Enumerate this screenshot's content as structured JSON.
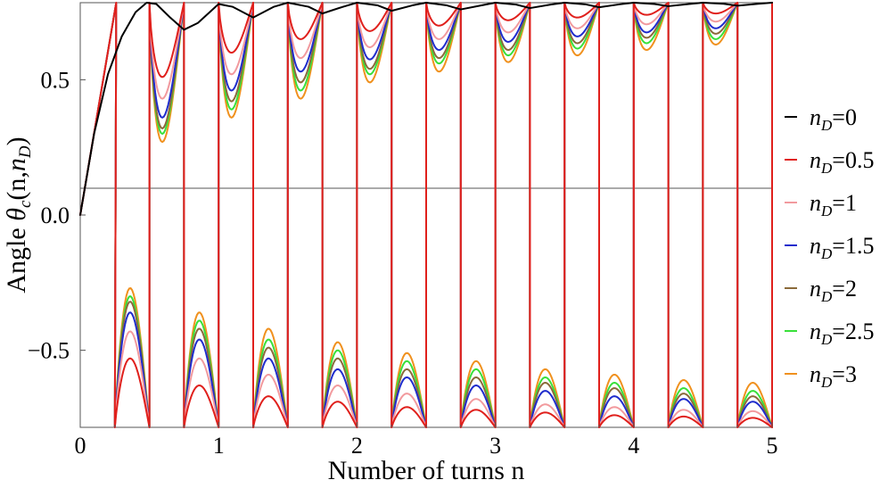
{
  "chart_data": {
    "type": "line",
    "title": "",
    "xlabel": "Number of turns n",
    "ylabel": {
      "prefix": "Angle ",
      "theta": "θ",
      "theta_sub": "c",
      "args_open": "(n,",
      "n_symbol": "n",
      "n_sub": "D",
      "args_close": ")"
    },
    "xlim": [
      0,
      5
    ],
    "ylim": [
      -0.785,
      0.785
    ],
    "x_ticks": [
      0,
      1,
      2,
      3,
      4,
      5
    ],
    "x_tick_labels": [
      "0",
      "1",
      "2",
      "3",
      "4",
      "5"
    ],
    "y_ticks": [
      -0.5,
      0.0,
      0.5
    ],
    "y_tick_labels": [
      "−0.5",
      "0.0",
      "0.5"
    ],
    "zero_line": true,
    "grid": false,
    "legend_position": "right",
    "series": [
      {
        "name": "n_D=0",
        "n_D": 0,
        "label": {
          "sym": "n",
          "sub": "D",
          "value": "=0"
        },
        "color": "#000000"
      },
      {
        "name": "n_D=0.5",
        "n_D": 0.5,
        "label": {
          "sym": "n",
          "sub": "D",
          "value": "=0.5"
        },
        "color": "#e0201c"
      },
      {
        "name": "n_D=1",
        "n_D": 1,
        "label": {
          "sym": "n",
          "sub": "D",
          "value": "=1"
        },
        "color": "#f29a9e"
      },
      {
        "name": "n_D=1.5",
        "n_D": 1.5,
        "label": {
          "sym": "n",
          "sub": "D",
          "value": "=1.5"
        },
        "color": "#1f2ccc"
      },
      {
        "name": "n_D=2",
        "n_D": 2,
        "label": {
          "sym": "n",
          "sub": "D",
          "value": "=2"
        },
        "color": "#8b6a3a"
      },
      {
        "name": "n_D=2.5",
        "n_D": 2.5,
        "label": {
          "sym": "n",
          "sub": "D",
          "value": "=2.5"
        },
        "color": "#39e03a"
      },
      {
        "name": "n_D=3",
        "n_D": 3,
        "label": {
          "sym": "n",
          "sub": "D",
          "value": "=3"
        },
        "color": "#f0911e"
      }
    ],
    "black_curve": {
      "x": [
        0,
        0.1,
        0.2,
        0.3,
        0.4,
        0.48,
        0.55,
        0.65,
        0.75,
        0.85,
        1.0,
        1.1,
        1.25,
        1.4,
        1.5,
        1.65,
        1.75,
        1.9,
        2.0,
        2.15,
        2.25,
        2.4,
        2.5,
        2.65,
        2.75,
        2.9,
        3.0,
        3.15,
        3.25,
        3.4,
        3.5,
        3.65,
        3.75,
        3.9,
        4.0,
        4.15,
        4.25,
        4.4,
        4.5,
        4.65,
        4.75,
        4.9,
        5.0
      ],
      "y": [
        0,
        0.3,
        0.52,
        0.66,
        0.75,
        0.785,
        0.78,
        0.73,
        0.685,
        0.71,
        0.78,
        0.77,
        0.73,
        0.77,
        0.785,
        0.77,
        0.745,
        0.77,
        0.785,
        0.775,
        0.755,
        0.775,
        0.785,
        0.775,
        0.76,
        0.775,
        0.785,
        0.778,
        0.765,
        0.778,
        0.785,
        0.779,
        0.768,
        0.779,
        0.785,
        0.78,
        0.772,
        0.78,
        0.785,
        0.781,
        0.774,
        0.781,
        0.785
      ]
    },
    "upper_minima_by_turn": {
      "turns": [
        0.5,
        1.0,
        1.5,
        2.0,
        2.5,
        3.0,
        3.5,
        4.0,
        4.5
      ],
      "n_D=0.5": [
        0.51,
        0.6,
        0.65,
        0.68,
        0.7,
        0.72,
        0.73,
        0.74,
        0.745
      ],
      "n_D=1": [
        0.43,
        0.52,
        0.58,
        0.62,
        0.65,
        0.675,
        0.69,
        0.705,
        0.715
      ],
      "n_D=1.5": [
        0.36,
        0.46,
        0.53,
        0.575,
        0.61,
        0.64,
        0.66,
        0.675,
        0.69
      ],
      "n_D=2": [
        0.32,
        0.42,
        0.49,
        0.54,
        0.58,
        0.61,
        0.635,
        0.655,
        0.67
      ],
      "n_D=2.5": [
        0.3,
        0.39,
        0.46,
        0.52,
        0.56,
        0.59,
        0.615,
        0.635,
        0.65
      ],
      "n_D=3": [
        0.27,
        0.36,
        0.43,
        0.49,
        0.53,
        0.565,
        0.59,
        0.61,
        0.63
      ]
    },
    "lower_maxima_by_turn": {
      "turns": [
        0.5,
        1.0,
        1.5,
        2.0,
        2.5,
        3.0,
        3.5,
        4.0,
        4.5,
        5.0
      ],
      "n_D=0.5": [
        -0.53,
        -0.63,
        -0.67,
        -0.69,
        -0.71,
        -0.72,
        -0.73,
        -0.74,
        -0.745,
        -0.75
      ],
      "n_D=1": [
        -0.43,
        -0.53,
        -0.59,
        -0.63,
        -0.66,
        -0.68,
        -0.7,
        -0.71,
        -0.72,
        -0.725
      ],
      "n_D=1.5": [
        -0.36,
        -0.46,
        -0.53,
        -0.57,
        -0.6,
        -0.63,
        -0.65,
        -0.67,
        -0.68,
        -0.69
      ],
      "n_D=2": [
        -0.32,
        -0.42,
        -0.49,
        -0.53,
        -0.57,
        -0.6,
        -0.62,
        -0.64,
        -0.66,
        -0.67
      ],
      "n_D=2.5": [
        -0.3,
        -0.39,
        -0.46,
        -0.5,
        -0.54,
        -0.57,
        -0.6,
        -0.62,
        -0.64,
        -0.65
      ],
      "n_D=3": [
        -0.27,
        -0.36,
        -0.42,
        -0.47,
        -0.51,
        -0.54,
        -0.57,
        -0.59,
        -0.61,
        -0.62
      ]
    },
    "first_rise_end": [
      0.26,
      0.785
    ]
  }
}
